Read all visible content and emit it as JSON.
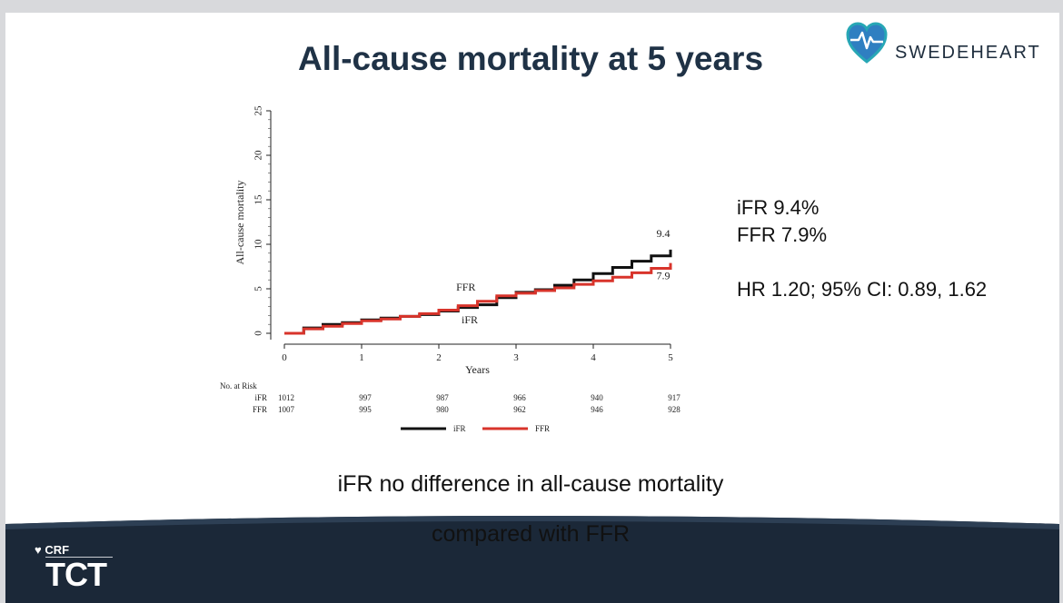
{
  "slide": {
    "title": "All-cause mortality at 5 years",
    "brand": {
      "name": "SWEDEHEART",
      "logo_icon": "heart-pulse-icon"
    },
    "stats": {
      "ifr_line": "iFR 9.4%",
      "ffr_line": "FFR 7.9%",
      "hr_line": "HR 1.20; 95% CI: 0.89, 1.62"
    },
    "conclusion_line1": "iFR no difference in all-cause mortality",
    "conclusion_line2": "compared with FFR",
    "footer": {
      "crf": "CRF",
      "tct": "TCT"
    },
    "colors": {
      "ifr": "#111111",
      "ffr": "#d8342b",
      "title": "#1f3246",
      "footer": "#1b2838"
    }
  },
  "chart_data": {
    "type": "line",
    "title": "",
    "xlabel": "Years",
    "ylabel": "All-cause mortality",
    "xlim": [
      0,
      5
    ],
    "ylim": [
      0,
      25
    ],
    "xticks": [
      "0",
      "1",
      "2",
      "3",
      "4",
      "5"
    ],
    "yticks": [
      "0",
      "5",
      "10",
      "15",
      "20",
      "25"
    ],
    "series": [
      {
        "name": "iFR",
        "color": "#111111",
        "x": [
          0,
          0.25,
          0.5,
          0.75,
          1,
          1.25,
          1.5,
          1.75,
          2,
          2.25,
          2.5,
          2.75,
          3,
          3.25,
          3.5,
          3.75,
          4,
          4.25,
          4.5,
          4.75,
          5
        ],
        "values": [
          0,
          0.6,
          1.0,
          1.2,
          1.5,
          1.7,
          1.9,
          2.1,
          2.5,
          2.9,
          3.2,
          4.0,
          4.6,
          4.9,
          5.4,
          6.0,
          6.7,
          7.4,
          8.1,
          8.7,
          9.4
        ],
        "end_label": "9.4",
        "curve_label": "iFR"
      },
      {
        "name": "FFR",
        "color": "#d8342b",
        "x": [
          0,
          0.25,
          0.5,
          0.75,
          1,
          1.25,
          1.5,
          1.75,
          2,
          2.25,
          2.5,
          2.75,
          3,
          3.25,
          3.5,
          3.75,
          4,
          4.25,
          4.5,
          4.75,
          5
        ],
        "values": [
          0,
          0.5,
          0.8,
          1.1,
          1.4,
          1.6,
          1.9,
          2.2,
          2.6,
          3.1,
          3.6,
          4.2,
          4.5,
          4.8,
          5.1,
          5.5,
          5.9,
          6.3,
          6.8,
          7.3,
          7.9
        ],
        "end_label": "7.9",
        "curve_label": "FFR"
      }
    ],
    "risk_table": {
      "title": "No. at Risk",
      "rows": [
        {
          "label": "iFR",
          "values": [
            "1012",
            "997",
            "987",
            "966",
            "940",
            "917"
          ]
        },
        {
          "label": "FFR",
          "values": [
            "1007",
            "995",
            "980",
            "962",
            "946",
            "928"
          ]
        }
      ]
    },
    "legend": [
      {
        "name": "iFR"
      },
      {
        "name": "FFR"
      }
    ]
  }
}
